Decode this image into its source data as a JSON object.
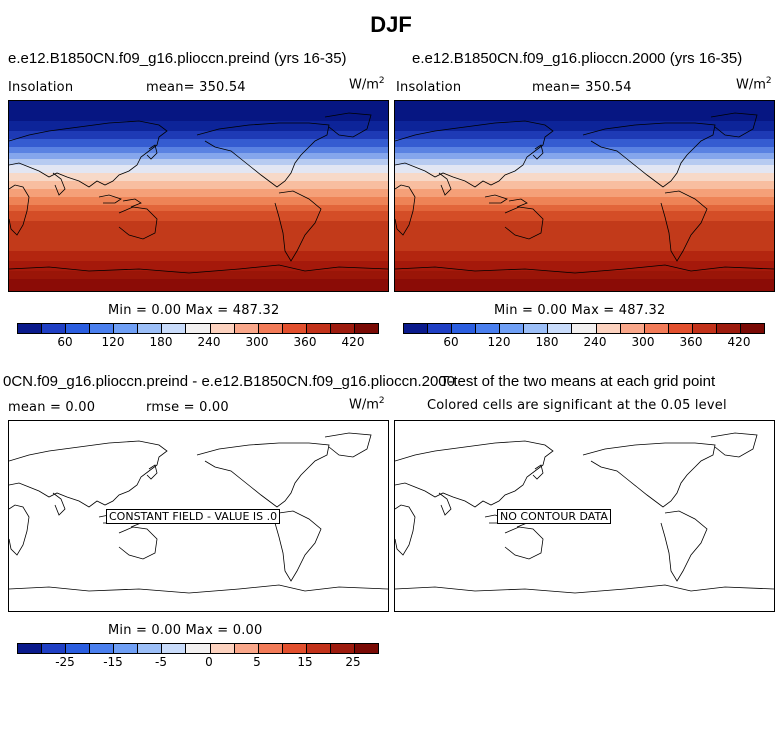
{
  "figure_title": "DJF",
  "panels": {
    "top_left": {
      "title": "e.e12.B1850CN.f09_g16.plioccn.preind (yrs 16-35)",
      "variable": "Insolation",
      "mean_label": "mean= 350.54",
      "units_base": "W/m",
      "units_exp": "2",
      "minmax": "Min =    0.00 Max = 487.32",
      "field_note": ""
    },
    "top_right": {
      "title": "e.e12.B1850CN.f09_g16.plioccn.2000 (yrs 16-35)",
      "variable": "Insolation",
      "mean_label": "mean= 350.54",
      "units_base": "W/m",
      "units_exp": "2",
      "minmax": "Min =    0.00 Max = 487.32",
      "field_note": ""
    },
    "bottom_left": {
      "title": "0CN.f09_g16.plioccn.preind - e.e12.B1850CN.f09_g16.plioccn.2000",
      "mean_label": "mean =   0.00",
      "rmse_label": "rmse =   0.00",
      "units_base": "W/m",
      "units_exp": "2",
      "minmax": "Min =    0.00 Max =   0.00",
      "field_note": "CONSTANT FIELD - VALUE IS .0"
    },
    "bottom_right": {
      "title": "T-test of the two means at each grid point",
      "subtitle": "Colored cells are significant at the 0.05 level",
      "field_note": "NO CONTOUR DATA"
    }
  },
  "colorbars": {
    "insolation": {
      "ticks": [
        "60",
        "120",
        "180",
        "240",
        "300",
        "360",
        "420"
      ],
      "colors": [
        "#0a1a8c",
        "#1f3fc4",
        "#2b5ee0",
        "#4a7fee",
        "#6f9ff5",
        "#9cbff8",
        "#c9dcfb",
        "#f2f0f0",
        "#fcd2bf",
        "#f9a78a",
        "#f27b58",
        "#e2502e",
        "#c2321a",
        "#9d1b0e",
        "#7a0a05"
      ]
    },
    "difference": {
      "ticks": [
        "-25",
        "-15",
        "-5",
        "0",
        "5",
        "15",
        "25"
      ],
      "colors": [
        "#0a1a8c",
        "#1f3fc4",
        "#2b5ee0",
        "#4a7fee",
        "#6f9ff5",
        "#9cbff8",
        "#c9dcfb",
        "#f2f0f0",
        "#fcd2bf",
        "#f9a78a",
        "#f27b58",
        "#e2502e",
        "#c2321a",
        "#9d1b0e",
        "#7a0a05"
      ]
    }
  },
  "insolation_bands_south_to_north": [
    "#8b0c06",
    "#9a1508",
    "#a5190b",
    "#b3260f",
    "#c23a1a",
    "#d44d27",
    "#e2653a",
    "#ee8356",
    "#f5a078",
    "#f8bea0",
    "#f7d9c8",
    "#e2e6f3",
    "#b7cbf1",
    "#85a6ec",
    "#5a82e2",
    "#355cd1",
    "#1e3ab5",
    "#0d2499",
    "#061682"
  ]
}
